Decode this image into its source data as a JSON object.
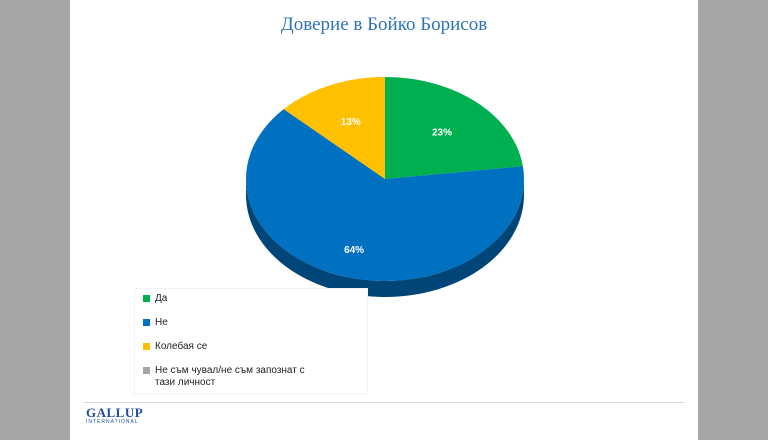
{
  "chart_data": {
    "type": "pie",
    "title": "Доверие в Бойко Борисов",
    "slices": [
      {
        "label": "Да",
        "value": 23,
        "data_label": "23%",
        "color": "#00b050"
      },
      {
        "label": "Не",
        "value": 64,
        "data_label": "64%",
        "color": "#0070c0"
      },
      {
        "label": "Колебая се",
        "value": 13,
        "data_label": "13%",
        "color": "#ffc000"
      },
      {
        "label": "Не съм чувал/не съм запознат с тази личност",
        "value": 0,
        "data_label": "",
        "color": "#a6a6a6"
      }
    ],
    "legend_position": "bottom-left",
    "three_d": true
  },
  "logo": {
    "main": "GALLUP",
    "sub": "INTERNATIONAL"
  }
}
